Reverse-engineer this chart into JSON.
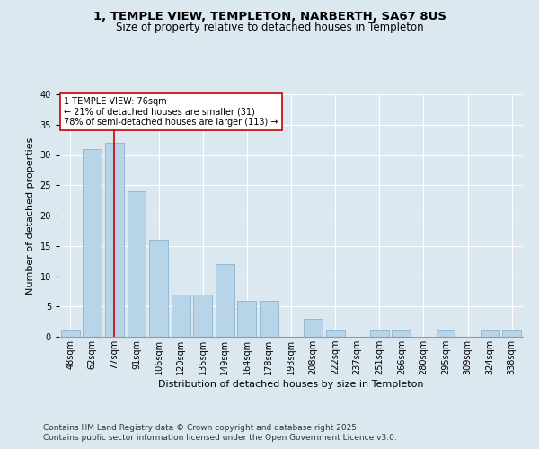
{
  "title_line1": "1, TEMPLE VIEW, TEMPLETON, NARBERTH, SA67 8US",
  "title_line2": "Size of property relative to detached houses in Templeton",
  "xlabel": "Distribution of detached houses by size in Templeton",
  "ylabel": "Number of detached properties",
  "categories": [
    "48sqm",
    "62sqm",
    "77sqm",
    "91sqm",
    "106sqm",
    "120sqm",
    "135sqm",
    "149sqm",
    "164sqm",
    "178sqm",
    "193sqm",
    "208sqm",
    "222sqm",
    "237sqm",
    "251sqm",
    "266sqm",
    "280sqm",
    "295sqm",
    "309sqm",
    "324sqm",
    "338sqm"
  ],
  "values": [
    1,
    31,
    32,
    24,
    16,
    7,
    7,
    12,
    6,
    6,
    0,
    3,
    1,
    0,
    1,
    1,
    0,
    1,
    0,
    1,
    1
  ],
  "bar_color": "#b8d4e8",
  "bar_edge_color": "#8ab4cc",
  "vline_color": "#cc0000",
  "vline_x": 2.0,
  "annotation_text": "1 TEMPLE VIEW: 76sqm\n← 21% of detached houses are smaller (31)\n78% of semi-detached houses are larger (113) →",
  "annotation_box_color": "white",
  "annotation_box_edge": "#cc0000",
  "ylim": [
    0,
    40
  ],
  "yticks": [
    0,
    5,
    10,
    15,
    20,
    25,
    30,
    35,
    40
  ],
  "background_color": "#dce8f0",
  "plot_bg_color": "#dce8f0",
  "footer_line1": "Contains HM Land Registry data © Crown copyright and database right 2025.",
  "footer_line2": "Contains public sector information licensed under the Open Government Licence v3.0.",
  "title_fontsize": 9.5,
  "subtitle_fontsize": 8.5,
  "axis_label_fontsize": 8,
  "tick_fontsize": 7,
  "annotation_fontsize": 7,
  "footer_fontsize": 6.5
}
